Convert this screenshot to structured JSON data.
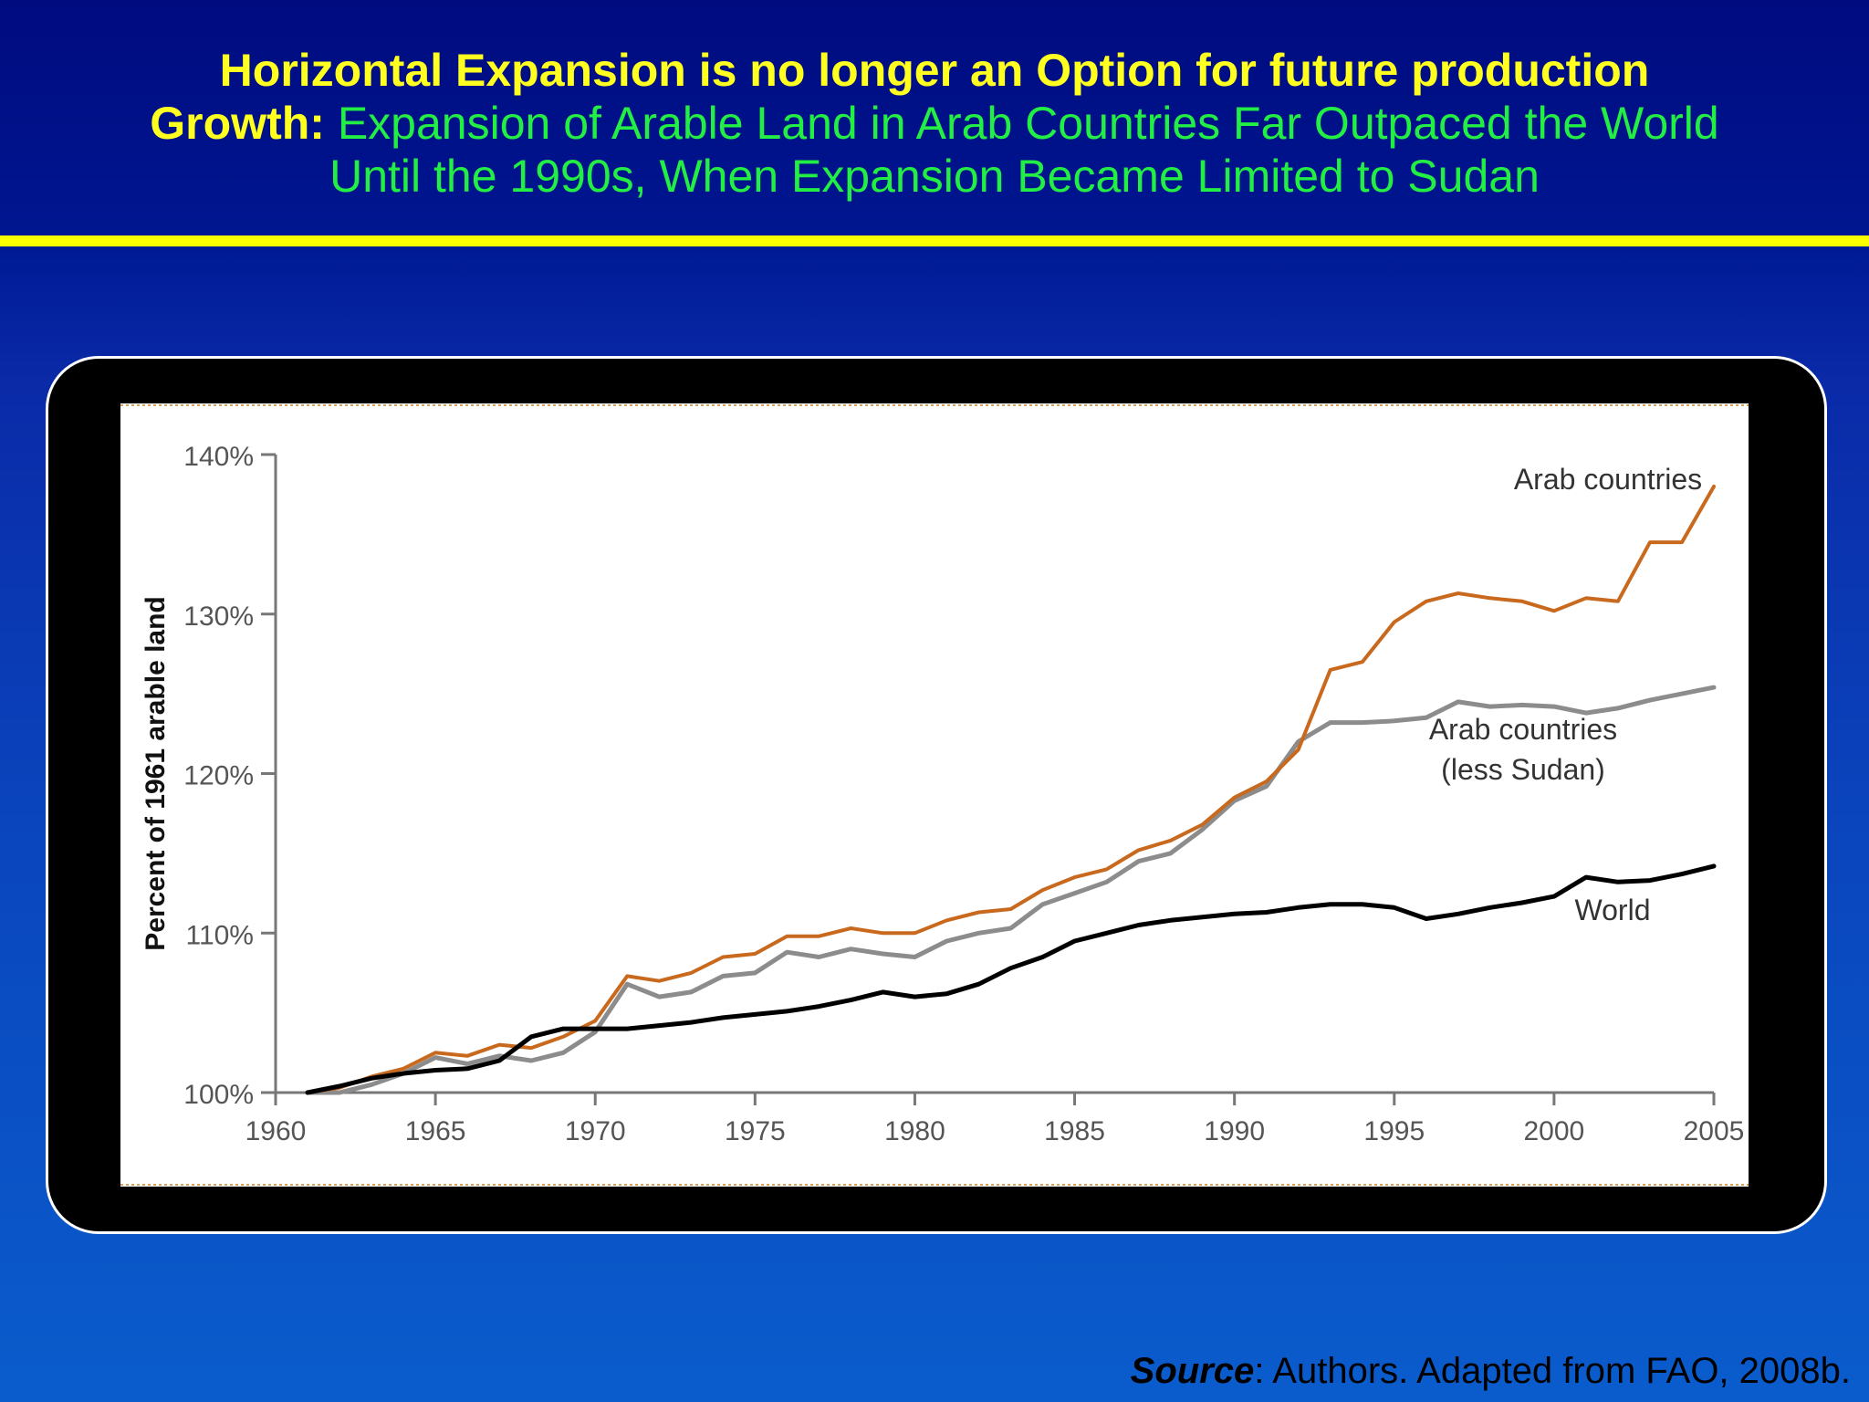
{
  "slide": {
    "title_line1": "Horizontal Expansion is no longer an Option for future production",
    "title_lead": "Growth:",
    "title_rest_line2": "Expansion of Arable Land in Arab Countries Far Outpaced the World",
    "title_line3": "Until the 1990s, When Expansion Became Limited to Sudan",
    "source_label": "Source",
    "source_text": ": Authors. Adapted from FAO, 2008b."
  },
  "colors": {
    "arab": "#c8691e",
    "arab_less_sudan": "#8c8c8c",
    "world": "#000000",
    "title_yellow": "#ffff20",
    "title_green": "#22ee44"
  },
  "chart_data": {
    "type": "line",
    "title": "",
    "xlabel": "",
    "ylabel": "Percent of 1961 arable land",
    "xlim": [
      1960,
      2005
    ],
    "ylim": [
      100,
      140
    ],
    "xticks": [
      "1960",
      "1965",
      "1970",
      "1975",
      "1980",
      "1985",
      "1990",
      "1995",
      "2000",
      "2005"
    ],
    "yticks": [
      "100%",
      "110%",
      "120%",
      "130%",
      "140%"
    ],
    "grid": false,
    "series": [
      {
        "name": "Arab countries",
        "label_lines": [
          "Arab countries"
        ],
        "color": "#c8691e",
        "x": [
          1961,
          1962,
          1963,
          1964,
          1965,
          1966,
          1967,
          1968,
          1969,
          1970,
          1971,
          1972,
          1973,
          1974,
          1975,
          1976,
          1977,
          1978,
          1979,
          1980,
          1981,
          1982,
          1983,
          1984,
          1985,
          1986,
          1987,
          1988,
          1989,
          1990,
          1991,
          1992,
          1993,
          1994,
          1995,
          1996,
          1997,
          1998,
          1999,
          2000,
          2001,
          2002,
          2003,
          2004,
          2005
        ],
        "y": [
          100,
          100.3,
          101,
          101.5,
          102.5,
          102.3,
          103,
          102.8,
          103.5,
          104.5,
          107.3,
          107,
          107.5,
          108.5,
          108.7,
          109.8,
          109.8,
          110.3,
          110,
          110,
          110.8,
          111.3,
          111.5,
          112.7,
          113.5,
          114,
          115.2,
          115.8,
          116.8,
          118.5,
          119.5,
          121.5,
          126.5,
          127,
          129.5,
          130.8,
          131.3,
          131,
          130.8,
          130.2,
          131,
          130.8,
          134.5,
          134.5,
          138
        ]
      },
      {
        "name": "Arab countries (less Sudan)",
        "label_lines": [
          "Arab countries",
          "(less Sudan)"
        ],
        "color": "#8c8c8c",
        "x": [
          1961,
          1962,
          1963,
          1964,
          1965,
          1966,
          1967,
          1968,
          1969,
          1970,
          1971,
          1972,
          1973,
          1974,
          1975,
          1976,
          1977,
          1978,
          1979,
          1980,
          1981,
          1982,
          1983,
          1984,
          1985,
          1986,
          1987,
          1988,
          1989,
          1990,
          1991,
          1992,
          1993,
          1994,
          1995,
          1996,
          1997,
          1998,
          1999,
          2000,
          2001,
          2002,
          2003,
          2004,
          2005
        ],
        "y": [
          100,
          100,
          100.5,
          101.2,
          102.2,
          101.8,
          102.3,
          102,
          102.5,
          103.8,
          106.8,
          106,
          106.3,
          107.3,
          107.5,
          108.8,
          108.5,
          109,
          108.7,
          108.5,
          109.5,
          110,
          110.3,
          111.8,
          112.5,
          113.2,
          114.5,
          115,
          116.5,
          118.3,
          119.2,
          122,
          123.2,
          123.2,
          123.3,
          123.5,
          124.5,
          124.2,
          124.3,
          124.2,
          123.8,
          124.1,
          124.6,
          125,
          125.4
        ]
      },
      {
        "name": "World",
        "label_lines": [
          "World"
        ],
        "color": "#000000",
        "x": [
          1961,
          1962,
          1963,
          1964,
          1965,
          1966,
          1967,
          1968,
          1969,
          1970,
          1971,
          1972,
          1973,
          1974,
          1975,
          1976,
          1977,
          1978,
          1979,
          1980,
          1981,
          1982,
          1983,
          1984,
          1985,
          1986,
          1987,
          1988,
          1989,
          1990,
          1991,
          1992,
          1993,
          1994,
          1995,
          1996,
          1997,
          1998,
          1999,
          2000,
          2001,
          2002,
          2003,
          2004,
          2005
        ],
        "y": [
          100,
          100.4,
          100.9,
          101.2,
          101.4,
          101.5,
          102,
          103.5,
          104,
          104,
          104,
          104.2,
          104.4,
          104.7,
          104.9,
          105.1,
          105.4,
          105.8,
          106.3,
          106,
          106.2,
          106.8,
          107.8,
          108.5,
          109.5,
          110,
          110.5,
          110.8,
          111,
          111.2,
          111.3,
          111.6,
          111.8,
          111.8,
          111.6,
          110.9,
          111.2,
          111.6,
          111.9,
          112.3,
          113.5,
          113.2,
          113.3,
          113.7,
          114.2
        ]
      }
    ]
  }
}
